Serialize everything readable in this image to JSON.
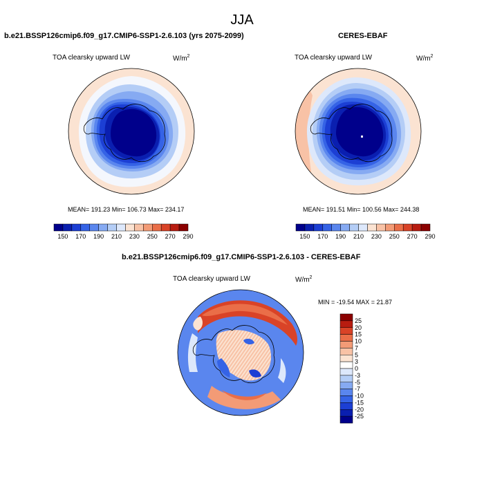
{
  "page": {
    "title": "JJA"
  },
  "panels": [
    {
      "title": "b.e21.BSSP126cmip6.f09_g17.CMIP6-SSP1-2.6.103 (yrs 2075-2099)",
      "variable": "TOA clearsky upward LW",
      "units_base": "W/m",
      "units_exp": "2",
      "stats": "MEAN= 191.23  Min= 106.73  Max= 234.17",
      "colorbar_labels": [
        "150",
        "170",
        "190",
        "210",
        "230",
        "250",
        "270",
        "290"
      ]
    },
    {
      "title": "CERES-EBAF",
      "variable": "TOA clearsky upward LW",
      "units_base": "W/m",
      "units_exp": "2",
      "stats": "MEAN= 191.51  Min= 100.56  Max= 244.38",
      "colorbar_labels": [
        "150",
        "170",
        "190",
        "210",
        "230",
        "250",
        "270",
        "290"
      ]
    },
    {
      "title": "b.e21.BSSP126cmip6.f09_g17.CMIP6-SSP1-2.6.103 - CERES-EBAF",
      "variable": "TOA clearsky upward LW",
      "units_base": "W/m",
      "units_exp": "2",
      "stats": "MIN = -19.54 MAX =  21.87",
      "colorbar_labels": [
        "25",
        "20",
        "15",
        "10",
        "7",
        "5",
        "3",
        "0",
        "-3",
        "-5",
        "-7",
        "-10",
        "-15",
        "-20",
        "-25"
      ]
    }
  ],
  "colors": {
    "abs_scale": [
      "#00008b",
      "#0a1fb0",
      "#1c3fd4",
      "#3563e6",
      "#5a86ee",
      "#86aaf2",
      "#b4cdf6",
      "#dde8fb",
      "#fbe3d2",
      "#f8c2a6",
      "#f39b76",
      "#ea6e48",
      "#d94327",
      "#b81c10",
      "#8b0000"
    ],
    "diff_scale": [
      "#8b0000",
      "#b81c10",
      "#d94327",
      "#ea6e48",
      "#f39b76",
      "#f8c2a6",
      "#fbe3d2",
      "#ffffff",
      "#dde8fb",
      "#b4cdf6",
      "#86aaf2",
      "#5a86ee",
      "#3563e6",
      "#1c3fd4",
      "#0a1fb0",
      "#00008b"
    ]
  }
}
